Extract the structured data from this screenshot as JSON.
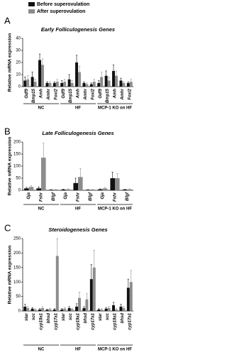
{
  "chart_data": [
    {
      "type": "bar",
      "panel": "A",
      "title": "Early Folliculogenesis Genes",
      "y_label": "Relative mRNA expression",
      "ylim": [
        0,
        40
      ],
      "yticks": [
        0,
        10,
        20,
        30,
        40
      ],
      "groups": [
        "NC",
        "HF",
        "MCP-1 KO on HF"
      ],
      "categories": [
        "Gdf9",
        "Bmp15",
        "Amh",
        "Amhr",
        "Foxl2",
        "Gdf9",
        "Bmp15",
        "Amh",
        "Amhr",
        "Foxl2",
        "Gdf9",
        "Bmp15",
        "Amh",
        "Amhr",
        "Foxl2"
      ],
      "series": [
        {
          "name": "Before superovulation",
          "color": "#111111",
          "values": [
            5,
            8,
            22,
            3,
            3,
            3,
            6,
            20,
            3,
            2,
            3,
            9,
            13,
            5,
            3
          ],
          "errors": [
            3,
            4,
            5,
            1,
            1,
            2,
            4,
            6,
            1,
            1,
            2,
            4,
            5,
            2,
            1
          ]
        },
        {
          "name": "After superovulation",
          "color": "#8c8c8c",
          "values": [
            6,
            4,
            18,
            3,
            4,
            4,
            3,
            12,
            2,
            4,
            8,
            5,
            9,
            3,
            4
          ],
          "errors": [
            3,
            2,
            5,
            1,
            2,
            2,
            2,
            5,
            1,
            2,
            4,
            3,
            4,
            1,
            2
          ]
        }
      ]
    },
    {
      "type": "bar",
      "panel": "B",
      "title": "Late Folliculogenesis Genes",
      "y_label": "Relative mRNA expression",
      "ylim": [
        0,
        200
      ],
      "yticks": [
        0,
        50,
        100,
        150,
        200
      ],
      "groups": [
        "NC",
        "HF",
        "MCP-1 KO on HF"
      ],
      "categories": [
        "Gja",
        "Fshr",
        "Bfgf",
        "Gja",
        "Fshr",
        "Bfgf",
        "Gja",
        "Fshr",
        "Bfgf"
      ],
      "series": [
        {
          "color": "#111111",
          "values": [
            8,
            8,
            2,
            3,
            30,
            2,
            4,
            50,
            3
          ],
          "errors": [
            4,
            6,
            1,
            2,
            20,
            1,
            2,
            25,
            1
          ]
        },
        {
          "color": "#8c8c8c",
          "values": [
            14,
            135,
            3,
            4,
            55,
            3,
            8,
            50,
            4
          ],
          "errors": [
            6,
            60,
            1,
            2,
            35,
            1,
            4,
            20,
            2
          ]
        }
      ]
    },
    {
      "type": "bar",
      "panel": "C",
      "title": "Steroidogenesis Genes",
      "y_label": "Relative mRNA expression",
      "ylim": [
        0,
        250
      ],
      "yticks": [
        0,
        50,
        100,
        150,
        200,
        250
      ],
      "groups": [
        "NC",
        "HF",
        "MCP-1 KO on HF"
      ],
      "categories": [
        "star",
        "scc",
        "cyp19a1",
        "bhsd",
        "cyp17a1",
        "star",
        "scc",
        "cyp19a1",
        "bhsd",
        "cyp17a1",
        "star",
        "scc",
        "cyp19a1",
        "bhsd",
        "cyp17a1"
      ],
      "series": [
        {
          "color": "#111111",
          "values": [
            15,
            8,
            5,
            4,
            5,
            5,
            10,
            15,
            10,
            110,
            5,
            8,
            20,
            15,
            80
          ],
          "errors": [
            8,
            4,
            3,
            2,
            3,
            3,
            5,
            10,
            5,
            50,
            3,
            4,
            10,
            8,
            30
          ]
        },
        {
          "color": "#8c8c8c",
          "values": [
            10,
            5,
            10,
            6,
            190,
            8,
            6,
            45,
            40,
            150,
            5,
            10,
            5,
            10,
            100
          ],
          "errors": [
            5,
            3,
            5,
            3,
            60,
            4,
            3,
            20,
            20,
            60,
            3,
            5,
            3,
            5,
            40
          ]
        }
      ]
    }
  ]
}
